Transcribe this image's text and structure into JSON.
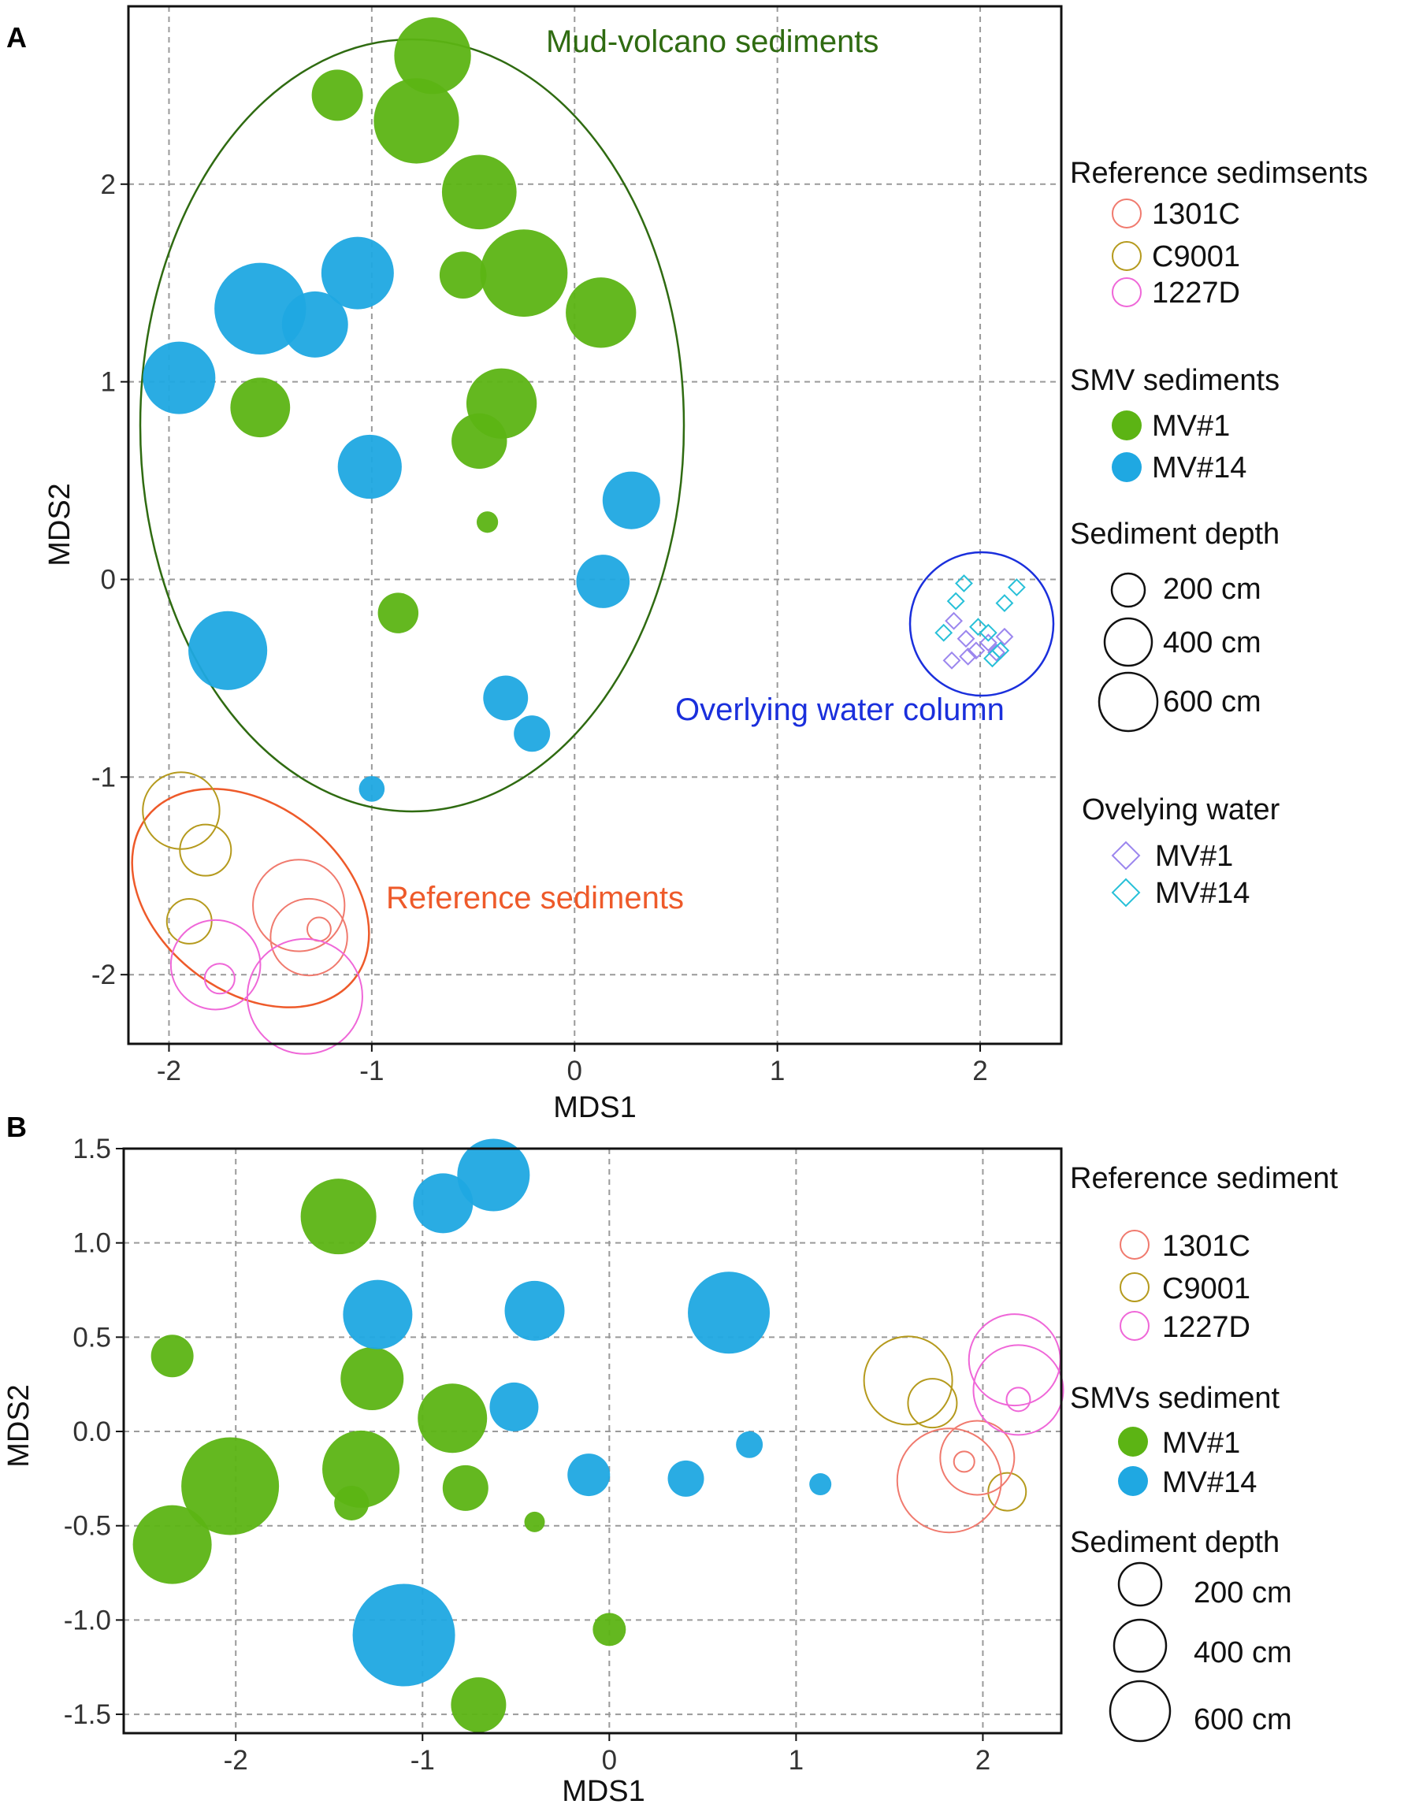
{
  "chart_data": [
    {
      "panel": "A",
      "type": "scatter",
      "xlabel": "MDS1",
      "ylabel": "MDS2",
      "xlim": [
        -2.2,
        2.4
      ],
      "ylim": [
        -2.35,
        2.9
      ],
      "xticks": [
        -2,
        -1,
        0,
        1,
        2
      ],
      "yticks": [
        -2,
        -1,
        0,
        1,
        2
      ],
      "grid": true,
      "colors": {
        "1301C": "#f07a6e",
        "C9001": "#b59a1d",
        "1227D": "#ef67d8",
        "MV#1": "#5cb414",
        "MV#14": "#1fa8e2",
        "W_MV#1": "#9b86ee",
        "W_MV#14": "#27c0d8"
      },
      "sediments": [
        {
          "group": "MV#1",
          "x": -0.7,
          "y": 2.65,
          "depth": 320
        },
        {
          "group": "MV#1",
          "x": -1.17,
          "y": 2.45,
          "depth": 200
        },
        {
          "group": "MV#1",
          "x": -0.78,
          "y": 2.32,
          "depth": 360
        },
        {
          "group": "MV#1",
          "x": -0.47,
          "y": 1.96,
          "depth": 310
        },
        {
          "group": "MV#1",
          "x": -0.55,
          "y": 1.54,
          "depth": 180
        },
        {
          "group": "MV#1",
          "x": -0.25,
          "y": 1.55,
          "depth": 370
        },
        {
          "group": "MV#1",
          "x": 0.13,
          "y": 1.35,
          "depth": 290
        },
        {
          "group": "MV#1",
          "x": -1.55,
          "y": 0.87,
          "depth": 240
        },
        {
          "group": "MV#1",
          "x": -0.36,
          "y": 0.89,
          "depth": 290
        },
        {
          "group": "MV#1",
          "x": -0.47,
          "y": 0.7,
          "depth": 220
        },
        {
          "group": "MV#1",
          "x": -0.43,
          "y": 0.29,
          "depth": 60
        },
        {
          "group": "MV#1",
          "x": -0.87,
          "y": -0.17,
          "depth": 150
        },
        {
          "group": "MV#14",
          "x": -1.07,
          "y": 1.55,
          "depth": 300
        },
        {
          "group": "MV#14",
          "x": -1.55,
          "y": 1.37,
          "depth": 390
        },
        {
          "group": "MV#14",
          "x": -1.28,
          "y": 1.29,
          "depth": 270
        },
        {
          "group": "MV#14",
          "x": -1.95,
          "y": 1.02,
          "depth": 300
        },
        {
          "group": "MV#14",
          "x": -1.01,
          "y": 0.57,
          "depth": 260
        },
        {
          "group": "MV#14",
          "x": 0.28,
          "y": 0.4,
          "depth": 230
        },
        {
          "group": "MV#14",
          "x": 0.14,
          "y": -0.01,
          "depth": 210
        },
        {
          "group": "MV#14",
          "x": -1.71,
          "y": -0.36,
          "depth": 330
        },
        {
          "group": "MV#14",
          "x": -0.34,
          "y": -0.6,
          "depth": 170
        },
        {
          "group": "MV#14",
          "x": -0.21,
          "y": -0.78,
          "depth": 130
        },
        {
          "group": "MV#14",
          "x": -1.0,
          "y": -1.06,
          "depth": 80
        }
      ],
      "reference": [
        {
          "group": "C9001",
          "x": -1.94,
          "y": -1.17,
          "depth": 320
        },
        {
          "group": "C9001",
          "x": -1.82,
          "y": -1.37,
          "depth": 200
        },
        {
          "group": "C9001",
          "x": -1.9,
          "y": -1.73,
          "depth": 170
        },
        {
          "group": "1301C",
          "x": -1.36,
          "y": -1.65,
          "depth": 390
        },
        {
          "group": "1301C",
          "x": -1.31,
          "y": -1.81,
          "depth": 320
        },
        {
          "group": "1301C",
          "x": -1.26,
          "y": -1.77,
          "depth": 70
        },
        {
          "group": "1227D",
          "x": -1.77,
          "y": -1.95,
          "depth": 380
        },
        {
          "group": "1227D",
          "x": -1.75,
          "y": -2.02,
          "depth": 100
        },
        {
          "group": "1227D",
          "x": -1.33,
          "y": -2.11,
          "depth": 500
        }
      ],
      "water": [
        {
          "group": "W_MV#1",
          "x": 1.87,
          "y": -0.21
        },
        {
          "group": "W_MV#1",
          "x": 1.93,
          "y": -0.3
        },
        {
          "group": "W_MV#1",
          "x": 1.98,
          "y": -0.36
        },
        {
          "group": "W_MV#1",
          "x": 2.04,
          "y": -0.32
        },
        {
          "group": "W_MV#1",
          "x": 2.12,
          "y": -0.29
        },
        {
          "group": "W_MV#1",
          "x": 1.86,
          "y": -0.41
        },
        {
          "group": "W_MV#1",
          "x": 1.94,
          "y": -0.39
        },
        {
          "group": "W_MV#1",
          "x": 2.08,
          "y": -0.37
        },
        {
          "group": "W_MV#14",
          "x": 1.92,
          "y": -0.02
        },
        {
          "group": "W_MV#14",
          "x": 1.88,
          "y": -0.11
        },
        {
          "group": "W_MV#14",
          "x": 2.18,
          "y": -0.04
        },
        {
          "group": "W_MV#14",
          "x": 2.12,
          "y": -0.12
        },
        {
          "group": "W_MV#14",
          "x": 1.82,
          "y": -0.27
        },
        {
          "group": "W_MV#14",
          "x": 1.99,
          "y": -0.24
        },
        {
          "group": "W_MV#14",
          "x": 2.04,
          "y": -0.27
        },
        {
          "group": "W_MV#14",
          "x": 2.06,
          "y": -0.4
        },
        {
          "group": "W_MV#14",
          "x": 2.1,
          "y": -0.36
        }
      ],
      "annotations": {
        "mud_volcano": "Mud-volcano sediments",
        "reference": "Reference sediments",
        "water": "Overlying water column"
      },
      "legend": {
        "ref_title": "Reference sedimsents",
        "ref_items": [
          "1301C",
          "C9001",
          "1227D"
        ],
        "smv_title": "SMV sediments",
        "smv_items": [
          "MV#1",
          "MV#14"
        ],
        "depth_title": "Sediment depth",
        "depth_items": [
          "200 cm",
          "400 cm",
          "600 cm"
        ],
        "water_title": "Ovelying water",
        "water_items": [
          "MV#1",
          "MV#14"
        ]
      }
    },
    {
      "panel": "B",
      "type": "scatter",
      "xlabel": "MDS1",
      "ylabel": "MDS2",
      "xlim": [
        -2.6,
        2.42
      ],
      "ylim": [
        -1.6,
        1.5
      ],
      "xticks": [
        -2,
        -1,
        0,
        1,
        2
      ],
      "yticks": [
        "1.5",
        "1.0",
        "0.5",
        "0.0",
        "-0.5",
        "-1.0",
        "-1.5"
      ],
      "ytick_values": [
        1.5,
        1.0,
        0.5,
        0.0,
        -0.5,
        -1.0,
        -1.5
      ],
      "grid": true,
      "sediments": [
        {
          "group": "MV#1",
          "x": -1.45,
          "y": 1.14,
          "depth": 420
        },
        {
          "group": "MV#1",
          "x": -2.34,
          "y": 0.4,
          "depth": 210
        },
        {
          "group": "MV#1",
          "x": -1.27,
          "y": 0.28,
          "depth": 340
        },
        {
          "group": "MV#1",
          "x": -0.84,
          "y": 0.07,
          "depth": 380
        },
        {
          "group": "MV#1",
          "x": -1.33,
          "y": -0.2,
          "depth": 430
        },
        {
          "group": "MV#1",
          "x": -2.03,
          "y": -0.29,
          "depth": 560
        },
        {
          "group": "MV#1",
          "x": -0.77,
          "y": -0.3,
          "depth": 230
        },
        {
          "group": "MV#1",
          "x": -1.38,
          "y": -0.38,
          "depth": 160
        },
        {
          "group": "MV#1",
          "x": -2.34,
          "y": -0.6,
          "depth": 440
        },
        {
          "group": "MV#1",
          "x": -0.4,
          "y": -0.48,
          "depth": 70
        },
        {
          "group": "MV#1",
          "x": 0.0,
          "y": -1.05,
          "depth": 150
        },
        {
          "group": "MV#1",
          "x": -0.7,
          "y": -1.45,
          "depth": 290
        },
        {
          "group": "MV#14",
          "x": -0.62,
          "y": 1.36,
          "depth": 400
        },
        {
          "group": "MV#14",
          "x": -0.89,
          "y": 1.21,
          "depth": 320
        },
        {
          "group": "MV#14",
          "x": -1.24,
          "y": 0.62,
          "depth": 380
        },
        {
          "group": "MV#14",
          "x": -0.4,
          "y": 0.64,
          "depth": 320
        },
        {
          "group": "MV#14",
          "x": 0.64,
          "y": 0.63,
          "depth": 460
        },
        {
          "group": "MV#14",
          "x": -0.51,
          "y": 0.13,
          "depth": 250
        },
        {
          "group": "MV#14",
          "x": 0.75,
          "y": -0.07,
          "depth": 110
        },
        {
          "group": "MV#14",
          "x": -0.11,
          "y": -0.23,
          "depth": 210
        },
        {
          "group": "MV#14",
          "x": 0.41,
          "y": -0.25,
          "depth": 170
        },
        {
          "group": "MV#14",
          "x": 1.13,
          "y": -0.28,
          "depth": 80
        },
        {
          "group": "MV#14",
          "x": -1.1,
          "y": -1.08,
          "depth": 590
        }
      ],
      "reference": [
        {
          "group": "C9001",
          "x": 1.6,
          "y": 0.27,
          "depth": 500
        },
        {
          "group": "C9001",
          "x": 1.73,
          "y": 0.15,
          "depth": 250
        },
        {
          "group": "C9001",
          "x": 2.13,
          "y": -0.32,
          "depth": 180
        },
        {
          "group": "1301C",
          "x": 1.97,
          "y": -0.14,
          "depth": 410
        },
        {
          "group": "1301C",
          "x": 1.82,
          "y": -0.26,
          "depth": 600
        },
        {
          "group": "1301C",
          "x": 1.9,
          "y": -0.16,
          "depth": 70
        },
        {
          "group": "1227D",
          "x": 2.17,
          "y": 0.38,
          "depth": 520
        },
        {
          "group": "1227D",
          "x": 2.19,
          "y": 0.22,
          "depth": 510
        },
        {
          "group": "1227D",
          "x": 2.19,
          "y": 0.17,
          "depth": 90
        }
      ],
      "legend": {
        "ref_title": "Reference sediment",
        "ref_items": [
          "1301C",
          "C9001",
          "1227D"
        ],
        "smv_title": "SMVs sediment",
        "smv_items": [
          "MV#1",
          "MV#14"
        ],
        "depth_title": "Sediment depth",
        "depth_items": [
          "200 cm",
          "400 cm",
          "600 cm"
        ]
      }
    }
  ],
  "panel_labels": [
    "A",
    "B"
  ]
}
